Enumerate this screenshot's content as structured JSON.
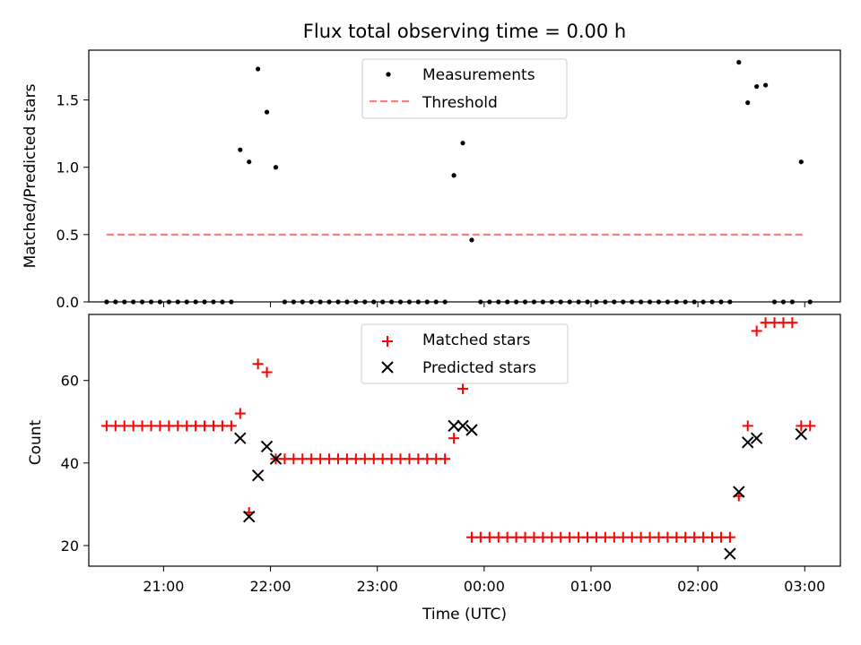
{
  "chart_data": [
    {
      "type": "scatter",
      "title": "Flux total observing time = 0.00 h",
      "ylabel": "Matched/Predicted stars",
      "xlabel": "",
      "ylim": [
        0,
        1.87
      ],
      "yticks": [
        "0.0",
        "0.5",
        "1.0",
        "1.5"
      ],
      "legend_position": "top-center",
      "series": [
        {
          "name": "Measurements",
          "style": "dot",
          "color": "#000000",
          "x": [
            "20:28",
            "20:33",
            "20:38",
            "20:43",
            "20:48",
            "20:53",
            "20:58",
            "21:03",
            "21:08",
            "21:13",
            "21:18",
            "21:23",
            "21:28",
            "21:33",
            "21:38",
            "21:43",
            "21:48",
            "21:53",
            "21:58",
            "22:03",
            "22:08",
            "22:13",
            "22:18",
            "22:23",
            "22:28",
            "22:33",
            "22:38",
            "22:43",
            "22:48",
            "22:53",
            "22:58",
            "23:03",
            "23:08",
            "23:13",
            "23:18",
            "23:23",
            "23:28",
            "23:33",
            "23:38",
            "23:43",
            "23:48",
            "23:53",
            "23:58",
            "00:03",
            "00:08",
            "00:13",
            "00:18",
            "00:23",
            "00:28",
            "00:33",
            "00:38",
            "00:43",
            "00:48",
            "00:53",
            "00:58",
            "01:03",
            "01:08",
            "01:13",
            "01:18",
            "01:23",
            "01:28",
            "01:33",
            "01:38",
            "01:43",
            "01:48",
            "01:53",
            "01:58",
            "02:03",
            "02:08",
            "02:13",
            "02:18",
            "02:23",
            "02:28",
            "02:33",
            "02:38",
            "02:43",
            "02:48",
            "02:53",
            "02:58",
            "03:03"
          ],
          "y": [
            0,
            0,
            0,
            0,
            0,
            0,
            0,
            0,
            0,
            0,
            0,
            0,
            0,
            0,
            0,
            1.13,
            1.04,
            1.73,
            1.41,
            1.0,
            0,
            0,
            0,
            0,
            0,
            0,
            0,
            0,
            0,
            0,
            0,
            0,
            0,
            0,
            0,
            0,
            0,
            0,
            0,
            0.94,
            1.18,
            0.46,
            0,
            0,
            0,
            0,
            0,
            0,
            0,
            0,
            0,
            0,
            0,
            0,
            0,
            0,
            0,
            0,
            0,
            0,
            0,
            0,
            0,
            0,
            0,
            0,
            0,
            0,
            0,
            0,
            0,
            1.78,
            1.48,
            1.6,
            1.61,
            0,
            0,
            0,
            1.04,
            0
          ]
        },
        {
          "name": "Threshold",
          "style": "dashed-line",
          "color": "#ff7f7f",
          "x": [
            "20:28",
            "03:00"
          ],
          "y": [
            0.5,
            0.5
          ]
        }
      ]
    },
    {
      "type": "scatter",
      "title": "",
      "ylabel": "Count",
      "xlabel": "Time (UTC)",
      "ylim": [
        15,
        76
      ],
      "yticks": [
        "20",
        "40",
        "60"
      ],
      "xticks": [
        "21:00",
        "22:00",
        "23:00",
        "00:00",
        "01:00",
        "02:00",
        "03:00"
      ],
      "legend_position": "top-center",
      "series": [
        {
          "name": "Matched stars",
          "style": "plus",
          "color": "#ff0000",
          "x": [
            "20:28",
            "20:33",
            "20:38",
            "20:43",
            "20:48",
            "20:53",
            "20:58",
            "21:03",
            "21:08",
            "21:13",
            "21:18",
            "21:23",
            "21:28",
            "21:33",
            "21:38",
            "21:43",
            "21:48",
            "21:53",
            "21:58",
            "22:03",
            "22:08",
            "22:13",
            "22:18",
            "22:23",
            "22:28",
            "22:33",
            "22:38",
            "22:43",
            "22:48",
            "22:53",
            "22:58",
            "23:03",
            "23:08",
            "23:13",
            "23:18",
            "23:23",
            "23:28",
            "23:33",
            "23:38",
            "23:43",
            "23:48",
            "23:53",
            "23:58",
            "00:03",
            "00:08",
            "00:13",
            "00:18",
            "00:23",
            "00:28",
            "00:33",
            "00:38",
            "00:43",
            "00:48",
            "00:53",
            "00:58",
            "01:03",
            "01:08",
            "01:13",
            "01:18",
            "01:23",
            "01:28",
            "01:33",
            "01:38",
            "01:43",
            "01:48",
            "01:53",
            "01:58",
            "02:03",
            "02:08",
            "02:13",
            "02:18",
            "02:23",
            "02:28",
            "02:33",
            "02:38",
            "02:43",
            "02:48",
            "02:53",
            "02:58",
            "03:03"
          ],
          "y": [
            49,
            49,
            49,
            49,
            49,
            49,
            49,
            49,
            49,
            49,
            49,
            49,
            49,
            49,
            49,
            52,
            28,
            64,
            62,
            41,
            41,
            41,
            41,
            41,
            41,
            41,
            41,
            41,
            41,
            41,
            41,
            41,
            41,
            41,
            41,
            41,
            41,
            41,
            41,
            46,
            58,
            22,
            22,
            22,
            22,
            22,
            22,
            22,
            22,
            22,
            22,
            22,
            22,
            22,
            22,
            22,
            22,
            22,
            22,
            22,
            22,
            22,
            22,
            22,
            22,
            22,
            22,
            22,
            22,
            22,
            22,
            32,
            49,
            72,
            74,
            74,
            74,
            74,
            49,
            49
          ]
        },
        {
          "name": "Predicted stars",
          "style": "x",
          "color": "#000000",
          "x": [
            "21:43",
            "21:48",
            "21:53",
            "21:58",
            "22:03",
            "23:43",
            "23:48",
            "23:53",
            "02:18",
            "02:23",
            "02:28",
            "02:33",
            "02:58"
          ],
          "y": [
            46,
            27,
            37,
            44,
            41,
            49,
            49,
            48,
            18,
            33,
            45,
            46,
            47
          ]
        }
      ]
    }
  ]
}
